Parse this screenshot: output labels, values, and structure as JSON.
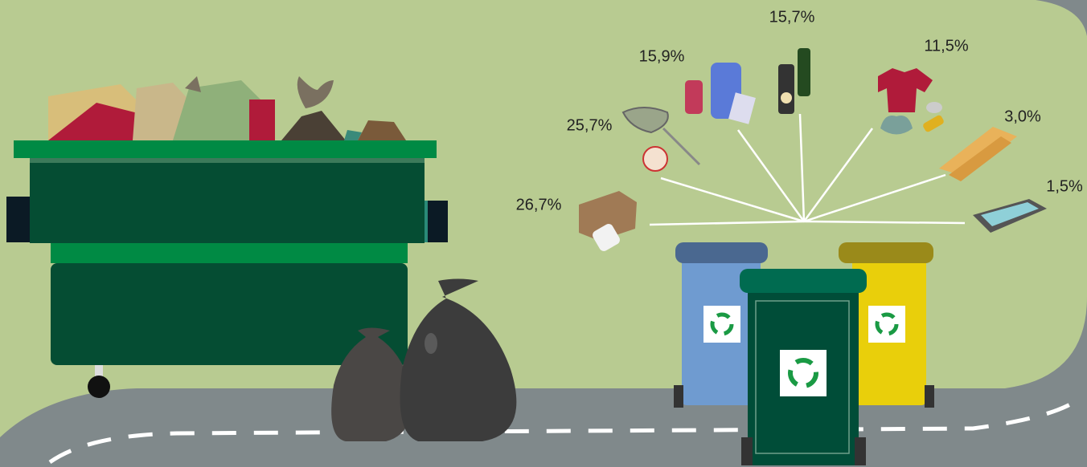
{
  "labels": [
    "26,7%",
    "25,7%",
    "15,9%",
    "15,7%",
    "11,5%",
    "3,0%",
    "1,5%"
  ]
}
